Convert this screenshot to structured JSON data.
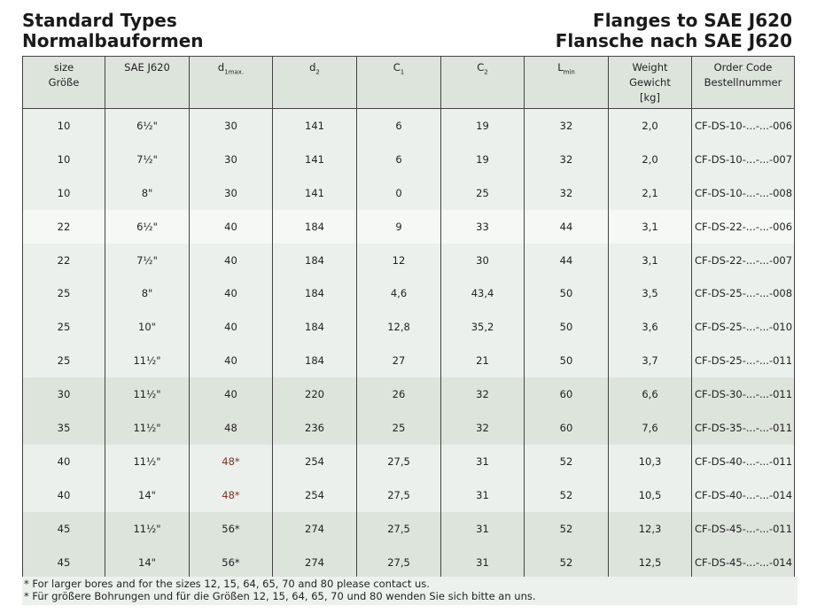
{
  "title_left": [
    "Standard Types",
    "Normalbauformen"
  ],
  "title_right": [
    "Flanges to SAE J620",
    "Flansche nach SAE J620"
  ],
  "headers": [
    {
      "lines": [
        "size",
        "Größe"
      ]
    },
    {
      "lines": [
        "SAE J620"
      ]
    },
    {
      "main": "d",
      "sub": "1max."
    },
    {
      "main": "d",
      "sub": "2"
    },
    {
      "main": "C",
      "sub": "1"
    },
    {
      "main": "C",
      "sub": "2"
    },
    {
      "main": "L",
      "sub": "min"
    },
    {
      "lines": [
        "Weight",
        "Gewicht",
        "[kg]"
      ]
    },
    {
      "lines": [
        "Order Code",
        "Bestellnummer"
      ]
    }
  ],
  "row_colors": {
    "a": "#ecf0ec",
    "b": "#f6f8f6",
    "c": "#dde4dc",
    "highlight_text": "#7a3424"
  },
  "rows": [
    {
      "shade": "a",
      "cells": [
        "10",
        "6½\"",
        "30",
        "141",
        "6",
        "19",
        "32",
        "2,0",
        "CF-DS-10-...-...-006"
      ]
    },
    {
      "shade": "a",
      "cells": [
        "10",
        "7½\"",
        "30",
        "141",
        "6",
        "19",
        "32",
        "2,0",
        "CF-DS-10-...-...-007"
      ]
    },
    {
      "shade": "a",
      "cells": [
        "10",
        "8\"",
        "30",
        "141",
        "0",
        "25",
        "32",
        "2,1",
        "CF-DS-10-...-...-008"
      ]
    },
    {
      "shade": "b",
      "cells": [
        "22",
        "6½\"",
        "40",
        "184",
        "9",
        "33",
        "44",
        "3,1",
        "CF-DS-22-...-...-006"
      ]
    },
    {
      "shade": "a",
      "cells": [
        "22",
        "7½\"",
        "40",
        "184",
        "12",
        "30",
        "44",
        "3,1",
        "CF-DS-22-...-...-007"
      ]
    },
    {
      "shade": "a",
      "cells": [
        "25",
        "8\"",
        "40",
        "184",
        "4,6",
        "43,4",
        "50",
        "3,5",
        "CF-DS-25-...-...-008"
      ]
    },
    {
      "shade": "a",
      "cells": [
        "25",
        "10\"",
        "40",
        "184",
        "12,8",
        "35,2",
        "50",
        "3,6",
        "CF-DS-25-...-...-010"
      ]
    },
    {
      "shade": "a",
      "cells": [
        "25",
        "11½\"",
        "40",
        "184",
        "27",
        "21",
        "50",
        "3,7",
        "CF-DS-25-...-...-011"
      ]
    },
    {
      "shade": "c",
      "cells": [
        "30",
        "11½\"",
        "40",
        "220",
        "26",
        "32",
        "60",
        "6,6",
        "CF-DS-30-...-...-011"
      ]
    },
    {
      "shade": "c",
      "cells": [
        "35",
        "11½\"",
        "48",
        "236",
        "25",
        "32",
        "60",
        "7,6",
        "CF-DS-35-...-...-011"
      ]
    },
    {
      "shade": "a",
      "red": true,
      "cells": [
        "40",
        "11½\"",
        "48*",
        "254",
        "27,5",
        "31",
        "52",
        "10,3",
        "CF-DS-40-...-...-011"
      ]
    },
    {
      "shade": "a",
      "red": true,
      "cells": [
        "40",
        "14\"",
        "48*",
        "254",
        "27,5",
        "31",
        "52",
        "10,5",
        "CF-DS-40-...-...-014"
      ]
    },
    {
      "shade": "c",
      "cells": [
        "45",
        "11½\"",
        "56*",
        "274",
        "27,5",
        "31",
        "52",
        "12,3",
        "CF-DS-45-...-...-011"
      ]
    },
    {
      "shade": "c",
      "cells": [
        "45",
        "14\"",
        "56*",
        "274",
        "27,5",
        "31",
        "52",
        "12,5",
        "CF-DS-45-...-...-014"
      ]
    }
  ],
  "footnotes": [
    "* For larger bores and for the sizes 12, 15, 64, 65, 70 and 80 please contact us.",
    "* Für größere Bohrungen und für die Größen 12, 15, 64, 65, 70 und 80 wenden Sie sich bitte an uns."
  ]
}
